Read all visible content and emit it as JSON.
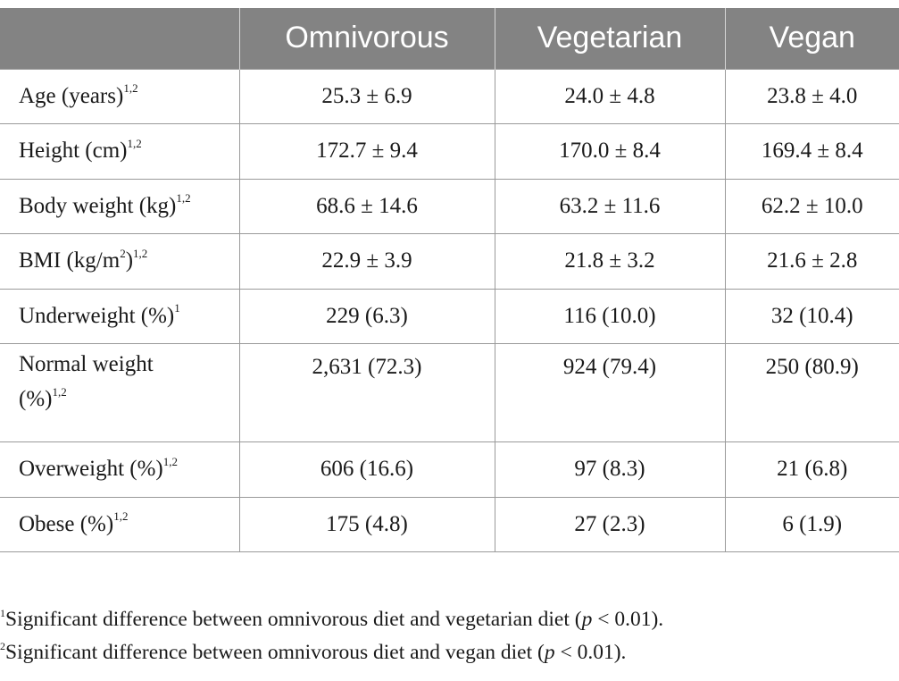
{
  "table": {
    "headers": [
      "",
      "Omnivorous",
      "Vegetarian",
      "Vegan"
    ],
    "rows": [
      {
        "label": "Age (years)",
        "sup": "1,2",
        "values": [
          "25.3 ± 6.9",
          "24.0 ± 4.8",
          "23.8 ± 4.0"
        ]
      },
      {
        "label": "Height (cm)",
        "sup": "1,2",
        "values": [
          "172.7 ± 9.4",
          "170.0 ± 8.4",
          "169.4 ± 8.4"
        ]
      },
      {
        "label": "Body weight (kg)",
        "sup": "1,2",
        "values": [
          "68.6 ± 14.6",
          "63.2 ± 11.6",
          "62.2 ± 10.0"
        ]
      },
      {
        "label_pre": "BMI (kg/m",
        "label_sup_inner": "2",
        "label_post": ")",
        "sup": "1,2",
        "values": [
          "22.9 ± 3.9",
          "21.8 ± 3.2",
          "21.6 ± 2.8"
        ]
      },
      {
        "label": "Underweight (%)",
        "sup": "1",
        "values": [
          "229 (6.3)",
          "116 (10.0)",
          "32 (10.4)"
        ]
      },
      {
        "label_line1": "Normal weight",
        "label_line2": "(%)",
        "sup": "1,2",
        "values": [
          "2,631 (72.3)",
          "924 (79.4)",
          "250 (80.9)"
        ]
      },
      {
        "label": "Overweight (%)",
        "sup": "1,2",
        "values": [
          "606 (16.6)",
          "97 (8.3)",
          "21 (6.8)"
        ]
      },
      {
        "label": "Obese (%)",
        "sup": "1,2",
        "values": [
          "175 (4.8)",
          "27 (2.3)",
          "6 (1.9)"
        ]
      }
    ]
  },
  "footnotes": [
    {
      "mark": "1",
      "text": "Significant difference between omnivorous diet and vegetarian diet (",
      "p": "p",
      "tail": " < 0.01)."
    },
    {
      "mark": "2",
      "text": "Significant difference between omnivorous diet and vegan diet (",
      "p": "p",
      "tail": " < 0.01)."
    }
  ]
}
